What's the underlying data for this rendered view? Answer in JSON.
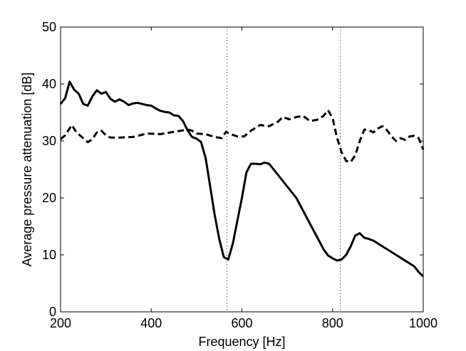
{
  "chart_data": {
    "type": "line",
    "title": "",
    "xlabel": "Frequency [Hz]",
    "ylabel": "Average pressure attenuation [dB]",
    "xlim": [
      200,
      1000
    ],
    "ylim": [
      0,
      50
    ],
    "xticks": [
      200,
      400,
      600,
      800,
      1000
    ],
    "yticks": [
      0,
      10,
      20,
      30,
      40,
      50
    ],
    "grid": false,
    "legend": "none",
    "vlines": [
      {
        "x": 567,
        "style": "dotted",
        "color": "#555555"
      },
      {
        "x": 817,
        "style": "dotted",
        "color": "#555555"
      }
    ],
    "series": [
      {
        "style": "solid",
        "color": "#000000",
        "points": [
          [
            200,
            36.5
          ],
          [
            210,
            37.5
          ],
          [
            220,
            40.4
          ],
          [
            230,
            39.0
          ],
          [
            240,
            38.3
          ],
          [
            250,
            36.5
          ],
          [
            260,
            36.2
          ],
          [
            270,
            37.8
          ],
          [
            280,
            38.9
          ],
          [
            290,
            38.3
          ],
          [
            300,
            38.6
          ],
          [
            310,
            37.4
          ],
          [
            320,
            36.9
          ],
          [
            330,
            37.3
          ],
          [
            340,
            36.9
          ],
          [
            350,
            36.3
          ],
          [
            360,
            36.6
          ],
          [
            370,
            36.7
          ],
          [
            380,
            36.5
          ],
          [
            390,
            36.3
          ],
          [
            400,
            36.2
          ],
          [
            410,
            35.7
          ],
          [
            420,
            35.3
          ],
          [
            430,
            35.1
          ],
          [
            440,
            35.0
          ],
          [
            450,
            34.5
          ],
          [
            460,
            34.4
          ],
          [
            470,
            33.5
          ],
          [
            480,
            31.9
          ],
          [
            490,
            30.7
          ],
          [
            500,
            30.4
          ],
          [
            510,
            29.8
          ],
          [
            520,
            27.0
          ],
          [
            530,
            22.0
          ],
          [
            540,
            17.0
          ],
          [
            550,
            12.8
          ],
          [
            560,
            9.6
          ],
          [
            570,
            9.2
          ],
          [
            580,
            12.0
          ],
          [
            590,
            16.0
          ],
          [
            600,
            20.0
          ],
          [
            610,
            24.5
          ],
          [
            620,
            26.0
          ],
          [
            630,
            26.0
          ],
          [
            640,
            25.9
          ],
          [
            650,
            26.2
          ],
          [
            660,
            26.0
          ],
          [
            670,
            25.0
          ],
          [
            680,
            24.0
          ],
          [
            690,
            23.0
          ],
          [
            700,
            22.0
          ],
          [
            710,
            21.0
          ],
          [
            720,
            20.0
          ],
          [
            730,
            18.5
          ],
          [
            740,
            17.0
          ],
          [
            750,
            15.5
          ],
          [
            760,
            14.0
          ],
          [
            770,
            12.5
          ],
          [
            780,
            11.0
          ],
          [
            790,
            9.9
          ],
          [
            800,
            9.4
          ],
          [
            810,
            9.0
          ],
          [
            820,
            9.2
          ],
          [
            830,
            10.0
          ],
          [
            840,
            11.5
          ],
          [
            850,
            13.4
          ],
          [
            860,
            13.8
          ],
          [
            870,
            13.0
          ],
          [
            880,
            12.8
          ],
          [
            890,
            12.5
          ],
          [
            900,
            12.0
          ],
          [
            910,
            11.5
          ],
          [
            920,
            11.0
          ],
          [
            930,
            10.5
          ],
          [
            940,
            10.0
          ],
          [
            950,
            9.5
          ],
          [
            960,
            9.0
          ],
          [
            970,
            8.5
          ],
          [
            980,
            8.0
          ],
          [
            990,
            7.0
          ],
          [
            1000,
            6.2
          ]
        ]
      },
      {
        "style": "dashed",
        "color": "#000000",
        "points": [
          [
            200,
            30.3
          ],
          [
            210,
            31.0
          ],
          [
            220,
            32.2
          ],
          [
            225,
            32.8
          ],
          [
            235,
            31.5
          ],
          [
            250,
            30.5
          ],
          [
            260,
            29.8
          ],
          [
            270,
            30.3
          ],
          [
            280,
            31.5
          ],
          [
            290,
            31.8
          ],
          [
            300,
            31.0
          ],
          [
            310,
            30.6
          ],
          [
            330,
            30.6
          ],
          [
            360,
            30.7
          ],
          [
            390,
            31.3
          ],
          [
            420,
            31.2
          ],
          [
            450,
            31.6
          ],
          [
            480,
            32.0
          ],
          [
            490,
            31.8
          ],
          [
            500,
            31.3
          ],
          [
            520,
            31.2
          ],
          [
            540,
            30.7
          ],
          [
            555,
            30.5
          ],
          [
            565,
            31.6
          ],
          [
            575,
            31.2
          ],
          [
            590,
            30.8
          ],
          [
            605,
            30.8
          ],
          [
            620,
            31.8
          ],
          [
            640,
            32.8
          ],
          [
            660,
            32.6
          ],
          [
            680,
            33.4
          ],
          [
            690,
            34.2
          ],
          [
            705,
            33.8
          ],
          [
            720,
            34.2
          ],
          [
            735,
            34.4
          ],
          [
            750,
            33.5
          ],
          [
            765,
            33.7
          ],
          [
            780,
            34.4
          ],
          [
            790,
            35.4
          ],
          [
            800,
            34.0
          ],
          [
            810,
            30.5
          ],
          [
            820,
            28.0
          ],
          [
            830,
            26.5
          ],
          [
            840,
            26.3
          ],
          [
            850,
            27.5
          ],
          [
            860,
            30.0
          ],
          [
            870,
            32.0
          ],
          [
            880,
            31.9
          ],
          [
            890,
            31.5
          ],
          [
            900,
            32.2
          ],
          [
            910,
            32.6
          ],
          [
            920,
            31.9
          ],
          [
            930,
            30.8
          ],
          [
            940,
            30.0
          ],
          [
            950,
            30.5
          ],
          [
            960,
            30.2
          ],
          [
            970,
            30.8
          ],
          [
            980,
            30.9
          ],
          [
            990,
            30.5
          ],
          [
            1000,
            28.5
          ]
        ]
      }
    ]
  }
}
